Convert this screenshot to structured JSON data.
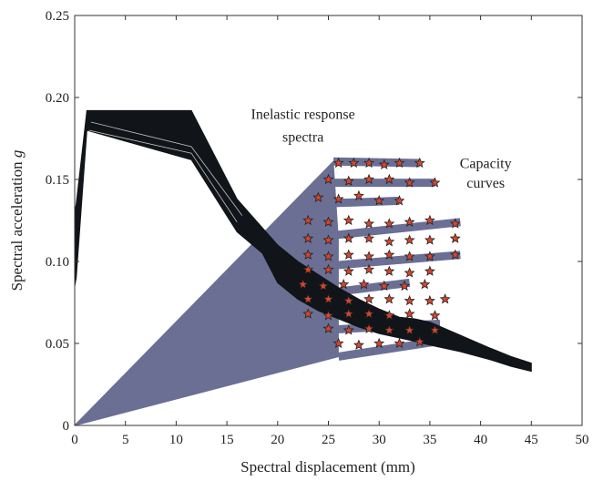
{
  "chart_data": {
    "type": "line",
    "title": "",
    "xlabel": "Spectral displacement (mm)",
    "ylabel_prefix": "Spectral acceleration",
    "ylabel_symbol": "g",
    "xlim": [
      0,
      50
    ],
    "ylim": [
      0,
      0.25
    ],
    "x_ticks": [
      0,
      5,
      10,
      15,
      20,
      25,
      30,
      35,
      40,
      45,
      50
    ],
    "y_ticks": [
      0,
      0.05,
      0.1,
      0.15,
      0.2,
      0.25
    ],
    "x_tick_labels": [
      "0",
      "5",
      "10",
      "15",
      "20",
      "25",
      "30",
      "35",
      "40",
      "45",
      "50"
    ],
    "y_tick_labels": [
      "0",
      "0.05",
      "0.10",
      "0.15",
      "0.20",
      "0.25"
    ],
    "grid": false,
    "annotations": [
      {
        "id": "inelastic-label-line1",
        "text": "Inelastic response",
        "x": 22.5,
        "y": 0.187
      },
      {
        "id": "inelastic-label-line2",
        "text": "spectra",
        "x": 22.5,
        "y": 0.173
      },
      {
        "id": "capacity-label-line1",
        "text": "Capacity",
        "x": 40.5,
        "y": 0.157
      },
      {
        "id": "capacity-label-line2",
        "text": "curves",
        "x": 40.5,
        "y": 0.145
      }
    ],
    "series": [
      {
        "group": "inelastic-response-spectra",
        "color": "#111418",
        "upper_envelope": {
          "x": [
            0,
            0.15,
            1.2,
            11.5,
            16,
            20,
            22,
            24,
            26,
            28,
            30,
            32,
            33.5,
            35,
            38,
            41,
            43,
            45
          ],
          "y": [
            0.13,
            0.135,
            0.192,
            0.192,
            0.138,
            0.11,
            0.1,
            0.092,
            0.084,
            0.077,
            0.071,
            0.066,
            0.065,
            0.063,
            0.055,
            0.047,
            0.042,
            0.038
          ]
        },
        "lower_envelope": {
          "x": [
            45,
            43,
            41,
            38,
            35,
            33,
            30,
            28,
            26,
            24,
            22,
            20,
            18.5,
            16,
            11.5,
            1.2,
            0.15,
            0
          ],
          "y": [
            0.033,
            0.036,
            0.04,
            0.045,
            0.049,
            0.052,
            0.056,
            0.06,
            0.065,
            0.07,
            0.077,
            0.087,
            0.105,
            0.118,
            0.162,
            0.18,
            0.09,
            0.085
          ]
        }
      },
      {
        "group": "capacity-curves",
        "color": "#6b6f94",
        "marker_color": "#d8452a",
        "plateau_start": {
          "x": [
            25.5,
            24.5,
            23,
            22.5,
            22.5,
            22.5,
            24,
            26
          ],
          "y": [
            0.161,
            0.148,
            0.135,
            0.114,
            0.096,
            0.079,
            0.058,
            0.042
          ]
        },
        "plateau_end": {
          "x": [
            34,
            35.5,
            32,
            38,
            38,
            33,
            36,
            35.5
          ],
          "y": [
            0.16,
            0.148,
            0.137,
            0.124,
            0.104,
            0.087,
            0.062,
            0.051
          ]
        },
        "points": {
          "x": [
            26,
            27.5,
            29,
            30.5,
            32,
            34,
            25,
            27,
            29,
            31,
            33,
            35.5,
            24,
            26,
            28,
            30,
            32,
            23,
            25,
            27,
            29,
            31,
            33,
            35,
            37.5,
            23,
            25,
            27,
            29,
            31,
            33,
            35,
            37.5,
            23,
            25,
            27,
            29,
            31,
            33,
            35,
            37.5,
            23,
            25,
            27,
            29,
            31,
            33,
            35,
            22.5,
            24.5,
            26.5,
            28.5,
            30.5,
            32.5,
            34.5,
            23,
            25,
            27,
            29,
            31,
            33,
            35,
            36.5,
            23,
            25,
            27,
            29,
            31,
            33,
            35.5,
            25,
            27,
            29,
            31,
            33,
            35.5,
            26,
            28,
            30,
            32,
            34
          ],
          "y": [
            0.16,
            0.16,
            0.16,
            0.159,
            0.16,
            0.16,
            0.15,
            0.149,
            0.15,
            0.15,
            0.148,
            0.148,
            0.139,
            0.138,
            0.14,
            0.137,
            0.137,
            0.125,
            0.124,
            0.125,
            0.123,
            0.123,
            0.124,
            0.125,
            0.123,
            0.114,
            0.113,
            0.114,
            0.114,
            0.112,
            0.113,
            0.113,
            0.114,
            0.104,
            0.103,
            0.104,
            0.103,
            0.104,
            0.103,
            0.103,
            0.104,
            0.095,
            0.095,
            0.094,
            0.095,
            0.094,
            0.093,
            0.094,
            0.086,
            0.085,
            0.086,
            0.086,
            0.085,
            0.085,
            0.086,
            0.077,
            0.077,
            0.076,
            0.077,
            0.077,
            0.076,
            0.076,
            0.077,
            0.068,
            0.067,
            0.068,
            0.068,
            0.067,
            0.068,
            0.067,
            0.059,
            0.058,
            0.059,
            0.058,
            0.058,
            0.058,
            0.05,
            0.049,
            0.05,
            0.05,
            0.051
          ]
        }
      }
    ]
  }
}
